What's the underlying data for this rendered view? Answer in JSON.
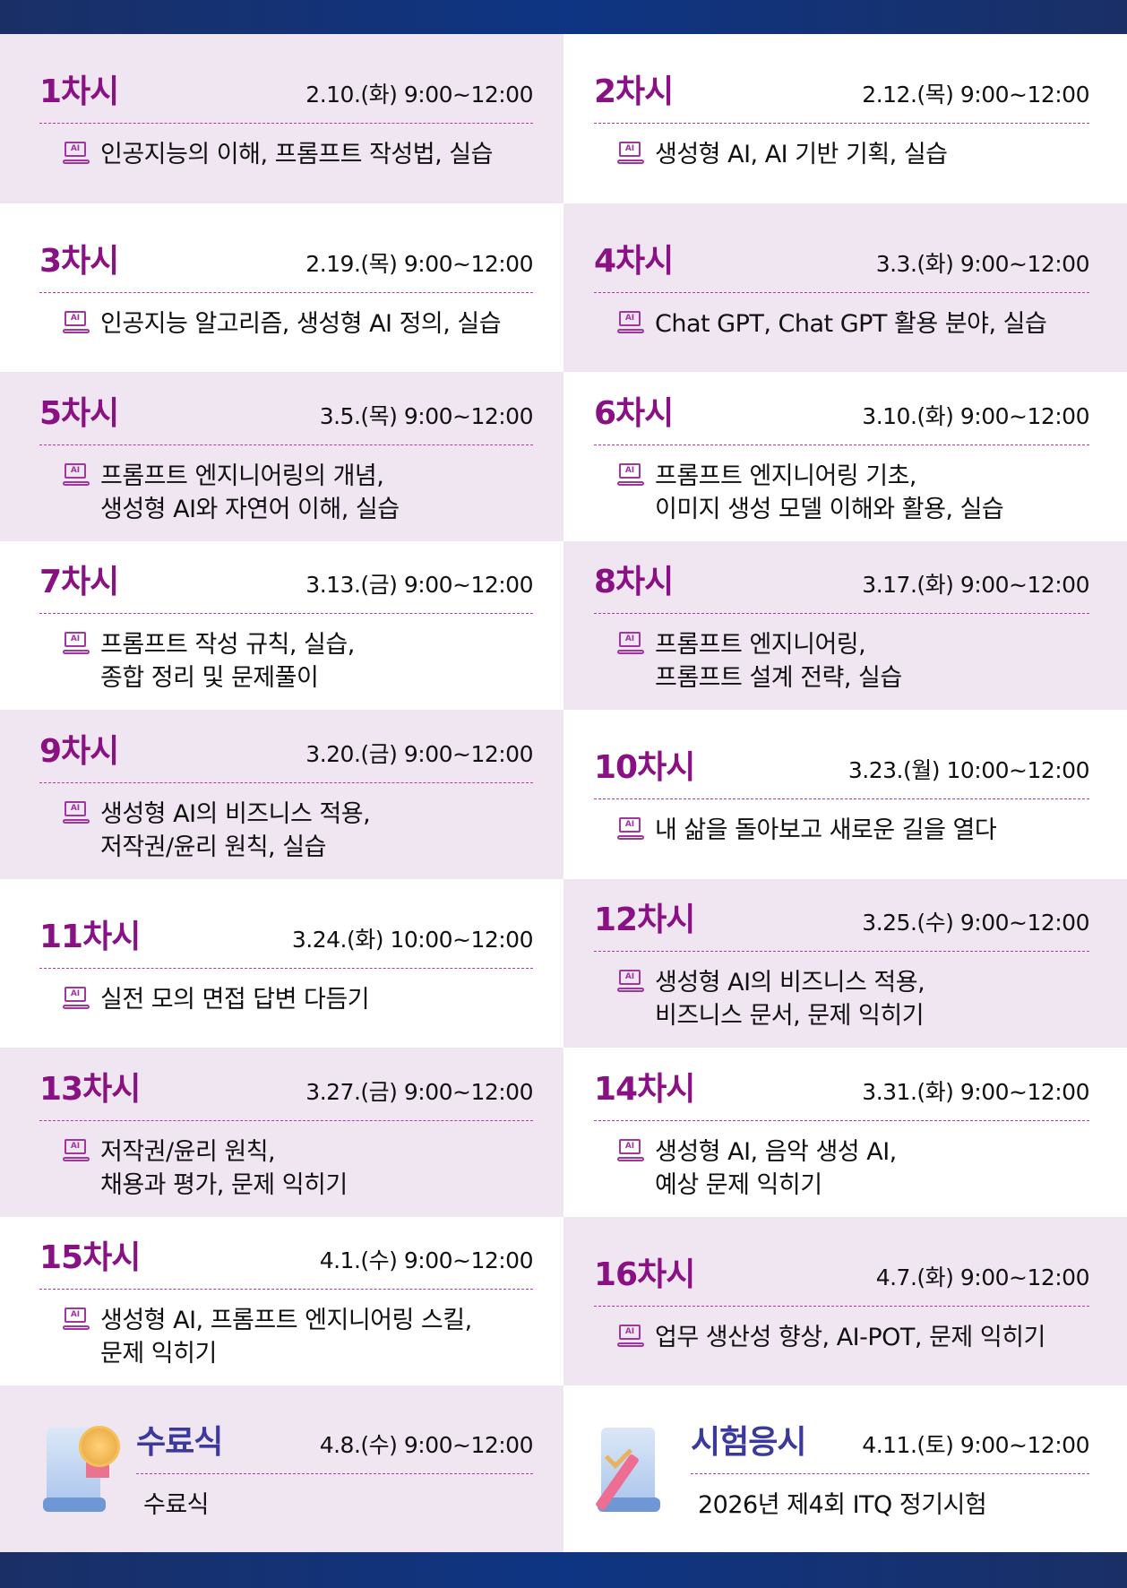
{
  "sessions": [
    {
      "title": "1차시",
      "date": "2.10.(화) 9:00~12:00",
      "lines": [
        "인공지능의 이해, 프롬프트 작성법, 실습"
      ]
    },
    {
      "title": "2차시",
      "date": "2.12.(목) 9:00~12:00",
      "lines": [
        "생성형 AI, AI 기반 기획, 실습"
      ]
    },
    {
      "title": "3차시",
      "date": "2.19.(목) 9:00~12:00",
      "lines": [
        "인공지능 알고리즘, 생성형 AI 정의, 실습"
      ]
    },
    {
      "title": "4차시",
      "date": "3.3.(화) 9:00~12:00",
      "lines": [
        "Chat GPT, Chat GPT 활용 분야, 실습"
      ]
    },
    {
      "title": "5차시",
      "date": "3.5.(목) 9:00~12:00",
      "lines": [
        "프롬프트 엔지니어링의 개념,",
        "생성형 AI와 자연어 이해, 실습"
      ]
    },
    {
      "title": "6차시",
      "date": "3.10.(화) 9:00~12:00",
      "lines": [
        "프롬프트 엔지니어링 기초,",
        "이미지 생성 모델 이해와 활용, 실습"
      ]
    },
    {
      "title": "7차시",
      "date": "3.13.(금) 9:00~12:00",
      "lines": [
        "프롬프트 작성 규칙, 실습,",
        "종합 정리 및 문제풀이"
      ]
    },
    {
      "title": "8차시",
      "date": "3.17.(화) 9:00~12:00",
      "lines": [
        "프롬프트 엔지니어링,",
        "프롬프트 설계 전략, 실습"
      ]
    },
    {
      "title": "9차시",
      "date": "3.20.(금) 9:00~12:00",
      "lines": [
        "생성형 AI의 비즈니스 적용,",
        "저작권/윤리 원칙, 실습"
      ]
    },
    {
      "title": "10차시",
      "date": "3.23.(월) 10:00~12:00",
      "lines": [
        "내 삶을 돌아보고 새로운 길을 열다"
      ]
    },
    {
      "title": "11차시",
      "date": "3.24.(화) 10:00~12:00",
      "lines": [
        "실전 모의 면접 답변 다듬기"
      ]
    },
    {
      "title": "12차시",
      "date": "3.25.(수) 9:00~12:00",
      "lines": [
        "생성형 AI의 비즈니스 적용,",
        "비즈니스 문서, 문제 익히기"
      ]
    },
    {
      "title": "13차시",
      "date": "3.27.(금) 9:00~12:00",
      "lines": [
        "저작권/윤리 원칙,",
        "채용과 평가, 문제 익히기"
      ]
    },
    {
      "title": "14차시",
      "date": "3.31.(화) 9:00~12:00",
      "lines": [
        "생성형 AI, 음악 생성 AI,",
        "예상 문제 익히기"
      ]
    },
    {
      "title": "15차시",
      "date": "4.1.(수) 9:00~12:00",
      "lines": [
        "생성형 AI, 프롬프트 엔지니어링 스킬,",
        "문제 익히기"
      ]
    },
    {
      "title": "16차시",
      "date": "4.7.(화) 9:00~12:00",
      "lines": [
        "업무 생산성 향상, AI-POT, 문제 익히기"
      ]
    }
  ],
  "icon_label": "AI",
  "ceremony": {
    "title": "수료식",
    "date": "4.8.(수) 9:00~12:00",
    "content": "수료식",
    "icon": "certificate-medal-icon"
  },
  "exam": {
    "title": "시험응시",
    "date": "4.11.(토) 9:00~12:00",
    "content": "2026년 제4회 ITQ 정기시험",
    "icon": "exam-pencil-icon"
  },
  "colors": {
    "title": "#8a1184",
    "special_title": "#3b3a9c",
    "pink_bg": "#f0e6f2",
    "bar": "#0e3583"
  }
}
